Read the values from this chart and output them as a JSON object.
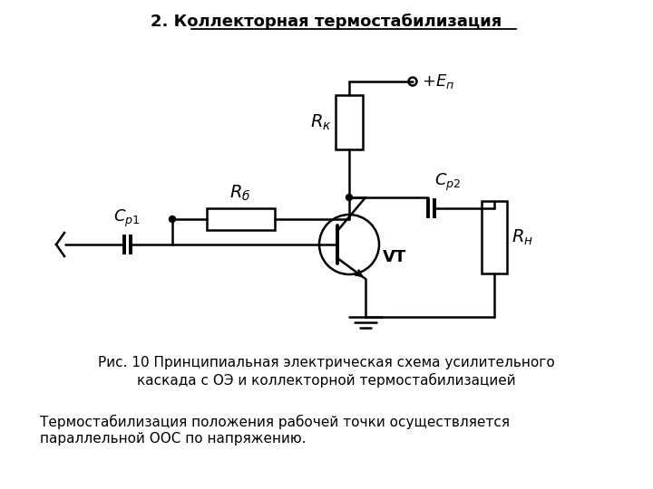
{
  "title": "2. Коллекторная термостабилизация",
  "caption_line1": "Рис. 10 Принципиальная электрическая схема усилительного",
  "caption_line2": "каскада с ОЭ и коллекторной термостабилизацией",
  "footer_line1": "Термостабилизация положения рабочей точки осуществляется",
  "footer_line2": "параллельной ООС по напряжению.",
  "label_Rk": "$R_к$",
  "label_Rb": "$R_б$",
  "label_Cp1": "$C_{р1}$",
  "label_Cp2": "$C_{р2}$",
  "label_Rn": "$R_н$",
  "label_VT": "VT",
  "label_Ep": "+ $E_п$",
  "bg_color": "#ffffff",
  "line_color": "#000000"
}
